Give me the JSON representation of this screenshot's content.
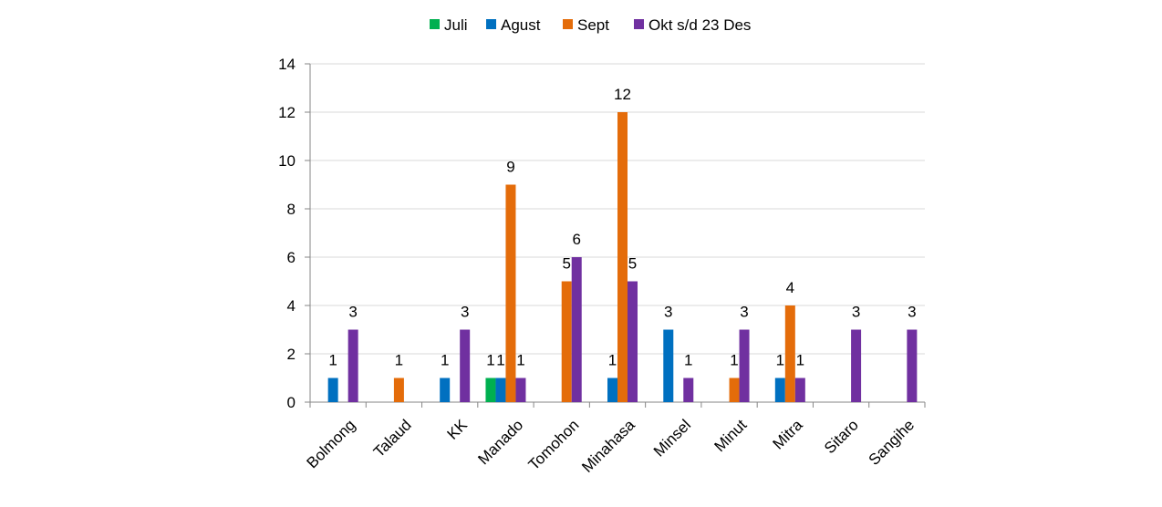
{
  "chart_data": {
    "type": "bar",
    "title": "",
    "xlabel": "",
    "ylabel": "",
    "ylim": [
      0,
      14
    ],
    "yticks": [
      0,
      2,
      4,
      6,
      8,
      10,
      12,
      14
    ],
    "grid": true,
    "legend_position": "top",
    "categories": [
      "Bolmong",
      "Talaud",
      "KK",
      "Manado",
      "Tomohon",
      "Minahasa",
      "Minsel",
      "Minut",
      "Mitra",
      "Sitaro",
      "Sangihe"
    ],
    "series": [
      {
        "name": "Juli",
        "color": "#00B050",
        "values": [
          null,
          null,
          null,
          1,
          null,
          null,
          null,
          null,
          null,
          null,
          null
        ]
      },
      {
        "name": "Agust",
        "color": "#0070C0",
        "values": [
          1,
          null,
          1,
          1,
          null,
          1,
          3,
          null,
          1,
          null,
          null
        ]
      },
      {
        "name": "Sept",
        "color": "#E46C0A",
        "values": [
          null,
          1,
          null,
          9,
          5,
          12,
          null,
          1,
          4,
          null,
          null
        ]
      },
      {
        "name": "Okt s/d 23 Des",
        "color": "#7030A0",
        "values": [
          3,
          null,
          3,
          1,
          6,
          5,
          1,
          3,
          1,
          3,
          3
        ]
      }
    ]
  }
}
